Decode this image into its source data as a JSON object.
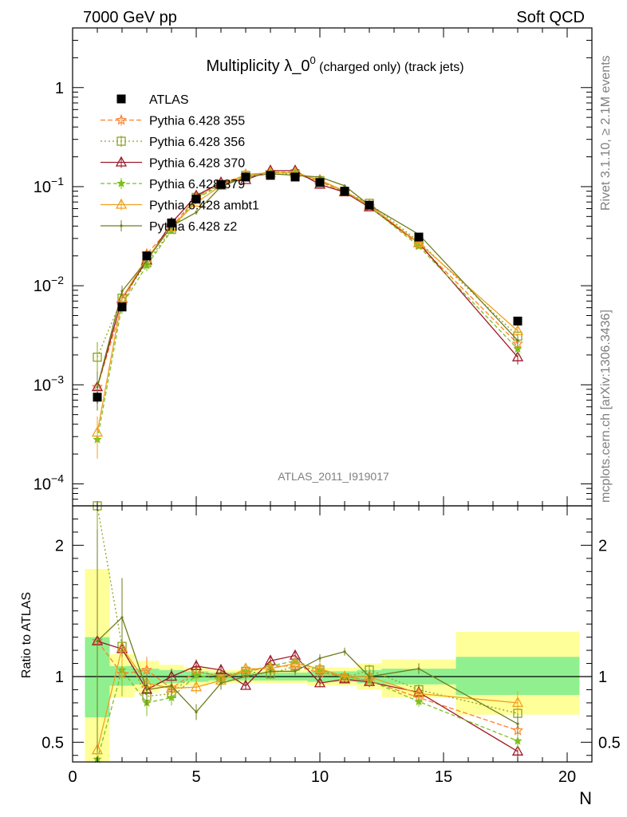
{
  "header": {
    "left": "7000 GeV pp",
    "right": "Soft QCD"
  },
  "side_labels": {
    "rivet": "Rivet 3.1.10, ≥ 2.1M events",
    "mcplots": "mcplots.cern.ch [arXiv:1306.3436]"
  },
  "chart_data": [
    {
      "type": "line",
      "title_main": "Multiplicity λ_0",
      "title_sup": "0",
      "title_tail": " (charged only) (track jets)",
      "watermark": "ATLAS_2011_I919017",
      "yscale": "log",
      "xlim": [
        0,
        21
      ],
      "ylim": [
        6e-05,
        4
      ],
      "yticks": [
        {
          "v": 0.0001,
          "base": "10",
          "exp": "−4"
        },
        {
          "v": 0.001,
          "base": "10",
          "exp": "−3"
        },
        {
          "v": 0.01,
          "base": "10",
          "exp": "−2"
        },
        {
          "v": 0.1,
          "base": "10",
          "exp": "−1"
        },
        {
          "v": 1,
          "base": "1",
          "exp": ""
        }
      ],
      "legend_position": "top-left",
      "x": [
        1,
        2,
        3,
        4,
        5,
        6,
        7,
        8,
        9,
        10,
        11,
        12,
        14,
        18
      ],
      "data": {
        "name": "ATLAS",
        "color": "#000000",
        "values": [
          0.00075,
          0.0061,
          0.02,
          0.043,
          0.075,
          0.105,
          0.125,
          0.13,
          0.125,
          0.11,
          0.09,
          0.065,
          0.031,
          0.0044
        ],
        "errors": [
          0.0001,
          0.0004,
          0.001,
          0.0015,
          0.0025,
          0.003,
          0.003,
          0.003,
          0.003,
          0.003,
          0.0025,
          0.002,
          0.001,
          0.0003
        ]
      },
      "series": [
        {
          "name": "Pythia 6.428 355",
          "color": "#ff7f2a",
          "dash": "6,3",
          "marker": "star",
          "values": [
            0.00095,
            0.0063,
            0.021,
            0.039,
            0.078,
            0.11,
            0.128,
            0.14,
            0.135,
            0.112,
            0.088,
            0.063,
            0.026,
            0.0026
          ],
          "errors": [
            0.0004,
            0.001,
            0.002,
            0.0025,
            0.003,
            0.003,
            0.003,
            0.003,
            0.003,
            0.003,
            0.003,
            0.002,
            0.001,
            0.0003
          ]
        },
        {
          "name": "Pythia 6.428 356",
          "color": "#8aa51a",
          "dash": "2,3",
          "marker": "square",
          "values": [
            0.0019,
            0.0075,
            0.017,
            0.037,
            0.078,
            0.105,
            0.13,
            0.132,
            0.135,
            0.115,
            0.089,
            0.068,
            0.028,
            0.0031
          ],
          "errors": [
            0.0008,
            0.0012,
            0.002,
            0.0025,
            0.003,
            0.003,
            0.003,
            0.003,
            0.003,
            0.003,
            0.003,
            0.002,
            0.001,
            0.0004
          ]
        },
        {
          "name": "Pythia 6.428 370",
          "color": "#9e1a2a",
          "dash": "",
          "marker": "triangle",
          "values": [
            0.00095,
            0.0074,
            0.018,
            0.043,
            0.081,
            0.11,
            0.117,
            0.145,
            0.145,
            0.105,
            0.088,
            0.062,
            0.027,
            0.0019
          ],
          "errors": [
            0.0004,
            0.0012,
            0.002,
            0.0025,
            0.003,
            0.003,
            0.003,
            0.003,
            0.003,
            0.003,
            0.003,
            0.002,
            0.001,
            0.0003
          ]
        },
        {
          "name": "Pythia 6.428 379",
          "color": "#7fbf1f",
          "dash": "5,3",
          "marker": "smallstar",
          "values": [
            0.00028,
            0.0064,
            0.016,
            0.036,
            0.076,
            0.103,
            0.13,
            0.14,
            0.14,
            0.115,
            0.09,
            0.063,
            0.025,
            0.0023
          ],
          "errors": [
            0.0001,
            0.0012,
            0.002,
            0.0025,
            0.003,
            0.003,
            0.003,
            0.003,
            0.003,
            0.003,
            0.003,
            0.002,
            0.001,
            0.0003
          ]
        },
        {
          "name": "Pythia 6.428 ambt1",
          "color": "#f0a01e",
          "dash": "",
          "marker": "triangle",
          "values": [
            0.00033,
            0.0075,
            0.019,
            0.039,
            0.069,
            0.102,
            0.133,
            0.138,
            0.138,
            0.117,
            0.09,
            0.065,
            0.027,
            0.0035
          ],
          "errors": [
            0.00015,
            0.0012,
            0.002,
            0.0025,
            0.003,
            0.003,
            0.003,
            0.003,
            0.003,
            0.003,
            0.003,
            0.002,
            0.001,
            0.0004
          ]
        },
        {
          "name": "Pythia 6.428 z2",
          "color": "#6f7d1c",
          "dash": "",
          "marker": "dot",
          "values": [
            0.00095,
            0.0088,
            0.018,
            0.04,
            0.055,
            0.1,
            0.125,
            0.135,
            0.13,
            0.125,
            0.102,
            0.065,
            0.033,
            0.0028
          ],
          "errors": [
            0.0004,
            0.0012,
            0.002,
            0.0025,
            0.003,
            0.003,
            0.003,
            0.003,
            0.003,
            0.003,
            0.003,
            0.002,
            0.001,
            0.0003
          ]
        }
      ]
    },
    {
      "type": "line",
      "ylabel": "Ratio to ATLAS",
      "xlabel": "N",
      "xlim": [
        0,
        21
      ],
      "ylim": [
        0.35,
        2.3
      ],
      "xticks": [
        0,
        5,
        10,
        15,
        20
      ],
      "yticks": [
        0.5,
        1,
        2
      ],
      "bands": [
        {
          "x0": 0.5,
          "x1": 1.5,
          "green": [
            0.69,
            1.3
          ],
          "yellow": [
            0.35,
            1.82
          ]
        },
        {
          "x0": 1.5,
          "x1": 2.5,
          "green": [
            0.93,
            1.08
          ],
          "yellow": [
            0.84,
            1.17
          ]
        },
        {
          "x0": 2.5,
          "x1": 3.5,
          "green": [
            0.94,
            1.06
          ],
          "yellow": [
            0.88,
            1.12
          ]
        },
        {
          "x0": 3.5,
          "x1": 4.5,
          "green": [
            0.95,
            1.05
          ],
          "yellow": [
            0.91,
            1.09
          ]
        },
        {
          "x0": 4.5,
          "x1": 5.5,
          "green": [
            0.96,
            1.04
          ],
          "yellow": [
            0.93,
            1.07
          ]
        },
        {
          "x0": 5.5,
          "x1": 9.5,
          "green": [
            0.97,
            1.03
          ],
          "yellow": [
            0.95,
            1.05
          ]
        },
        {
          "x0": 9.5,
          "x1": 11.5,
          "green": [
            0.96,
            1.04
          ],
          "yellow": [
            0.93,
            1.07
          ]
        },
        {
          "x0": 11.5,
          "x1": 12.5,
          "green": [
            0.95,
            1.05
          ],
          "yellow": [
            0.9,
            1.1
          ]
        },
        {
          "x0": 12.5,
          "x1": 15.5,
          "green": [
            0.94,
            1.06
          ],
          "yellow": [
            0.84,
            1.13
          ]
        },
        {
          "x0": 15.5,
          "x1": 20.5,
          "green": [
            0.86,
            1.15
          ],
          "yellow": [
            0.71,
            1.34
          ]
        }
      ],
      "x": [
        1,
        2,
        3,
        4,
        5,
        6,
        7,
        8,
        9,
        10,
        11,
        12,
        14,
        18
      ],
      "series": [
        {
          "name": "Pythia 6.428 355",
          "color": "#ff7f2a",
          "dash": "6,3",
          "marker": "star",
          "values": [
            1.27,
            1.02,
            1.05,
            0.91,
            1.04,
            1.0,
            1.03,
            1.08,
            1.08,
            1.03,
            1.0,
            0.97,
            0.84,
            0.59
          ],
          "errors": [
            0.5,
            0.17,
            0.1,
            0.06,
            0.05,
            0.04,
            0.03,
            0.03,
            0.03,
            0.03,
            0.03,
            0.04,
            0.04,
            0.07
          ]
        },
        {
          "name": "Pythia 6.428 356",
          "color": "#8aa51a",
          "dash": "2,3",
          "marker": "square",
          "values": [
            2.5,
            1.23,
            0.85,
            0.87,
            1.04,
            1.0,
            1.04,
            1.02,
            1.08,
            1.05,
            0.99,
            1.05,
            0.9,
            0.72
          ],
          "errors": [
            0.6,
            0.2,
            0.1,
            0.06,
            0.05,
            0.04,
            0.03,
            0.03,
            0.03,
            0.03,
            0.03,
            0.04,
            0.04,
            0.08
          ]
        },
        {
          "name": "Pythia 6.428 370",
          "color": "#9e1a2a",
          "dash": "",
          "marker": "triangle",
          "values": [
            1.27,
            1.21,
            0.9,
            1.0,
            1.08,
            1.05,
            0.93,
            1.12,
            1.16,
            0.95,
            0.98,
            0.96,
            0.88,
            0.43
          ],
          "errors": [
            0.5,
            0.2,
            0.1,
            0.06,
            0.05,
            0.04,
            0.03,
            0.03,
            0.03,
            0.03,
            0.03,
            0.04,
            0.04,
            0.07
          ]
        },
        {
          "name": "Pythia 6.428 379",
          "color": "#7fbf1f",
          "dash": "5,3",
          "marker": "smallstar",
          "values": [
            0.37,
            1.05,
            0.8,
            0.84,
            1.01,
            0.98,
            1.04,
            1.08,
            1.12,
            1.05,
            1.0,
            0.97,
            0.81,
            0.51
          ],
          "errors": [
            0.2,
            0.2,
            0.1,
            0.06,
            0.05,
            0.04,
            0.03,
            0.03,
            0.03,
            0.03,
            0.03,
            0.04,
            0.04,
            0.07
          ]
        },
        {
          "name": "Pythia 6.428 ambt1",
          "color": "#f0a01e",
          "dash": "",
          "marker": "triangle",
          "values": [
            0.44,
            1.22,
            0.95,
            0.91,
            0.92,
            0.97,
            1.06,
            1.06,
            1.1,
            1.06,
            1.0,
            1.0,
            0.87,
            0.8
          ],
          "errors": [
            0.2,
            0.2,
            0.1,
            0.06,
            0.05,
            0.04,
            0.03,
            0.03,
            0.03,
            0.03,
            0.03,
            0.04,
            0.04,
            0.09
          ]
        },
        {
          "name": "Pythia 6.428 z2",
          "color": "#6f7d1c",
          "dash": "",
          "marker": "dot",
          "values": [
            1.27,
            1.45,
            0.9,
            0.93,
            0.73,
            0.95,
            1.0,
            1.04,
            1.04,
            1.14,
            1.19,
            1.0,
            1.06,
            0.64
          ],
          "errors": [
            0.85,
            0.3,
            0.12,
            0.07,
            0.06,
            0.05,
            0.03,
            0.03,
            0.03,
            0.03,
            0.03,
            0.04,
            0.04,
            0.08
          ]
        }
      ]
    }
  ]
}
